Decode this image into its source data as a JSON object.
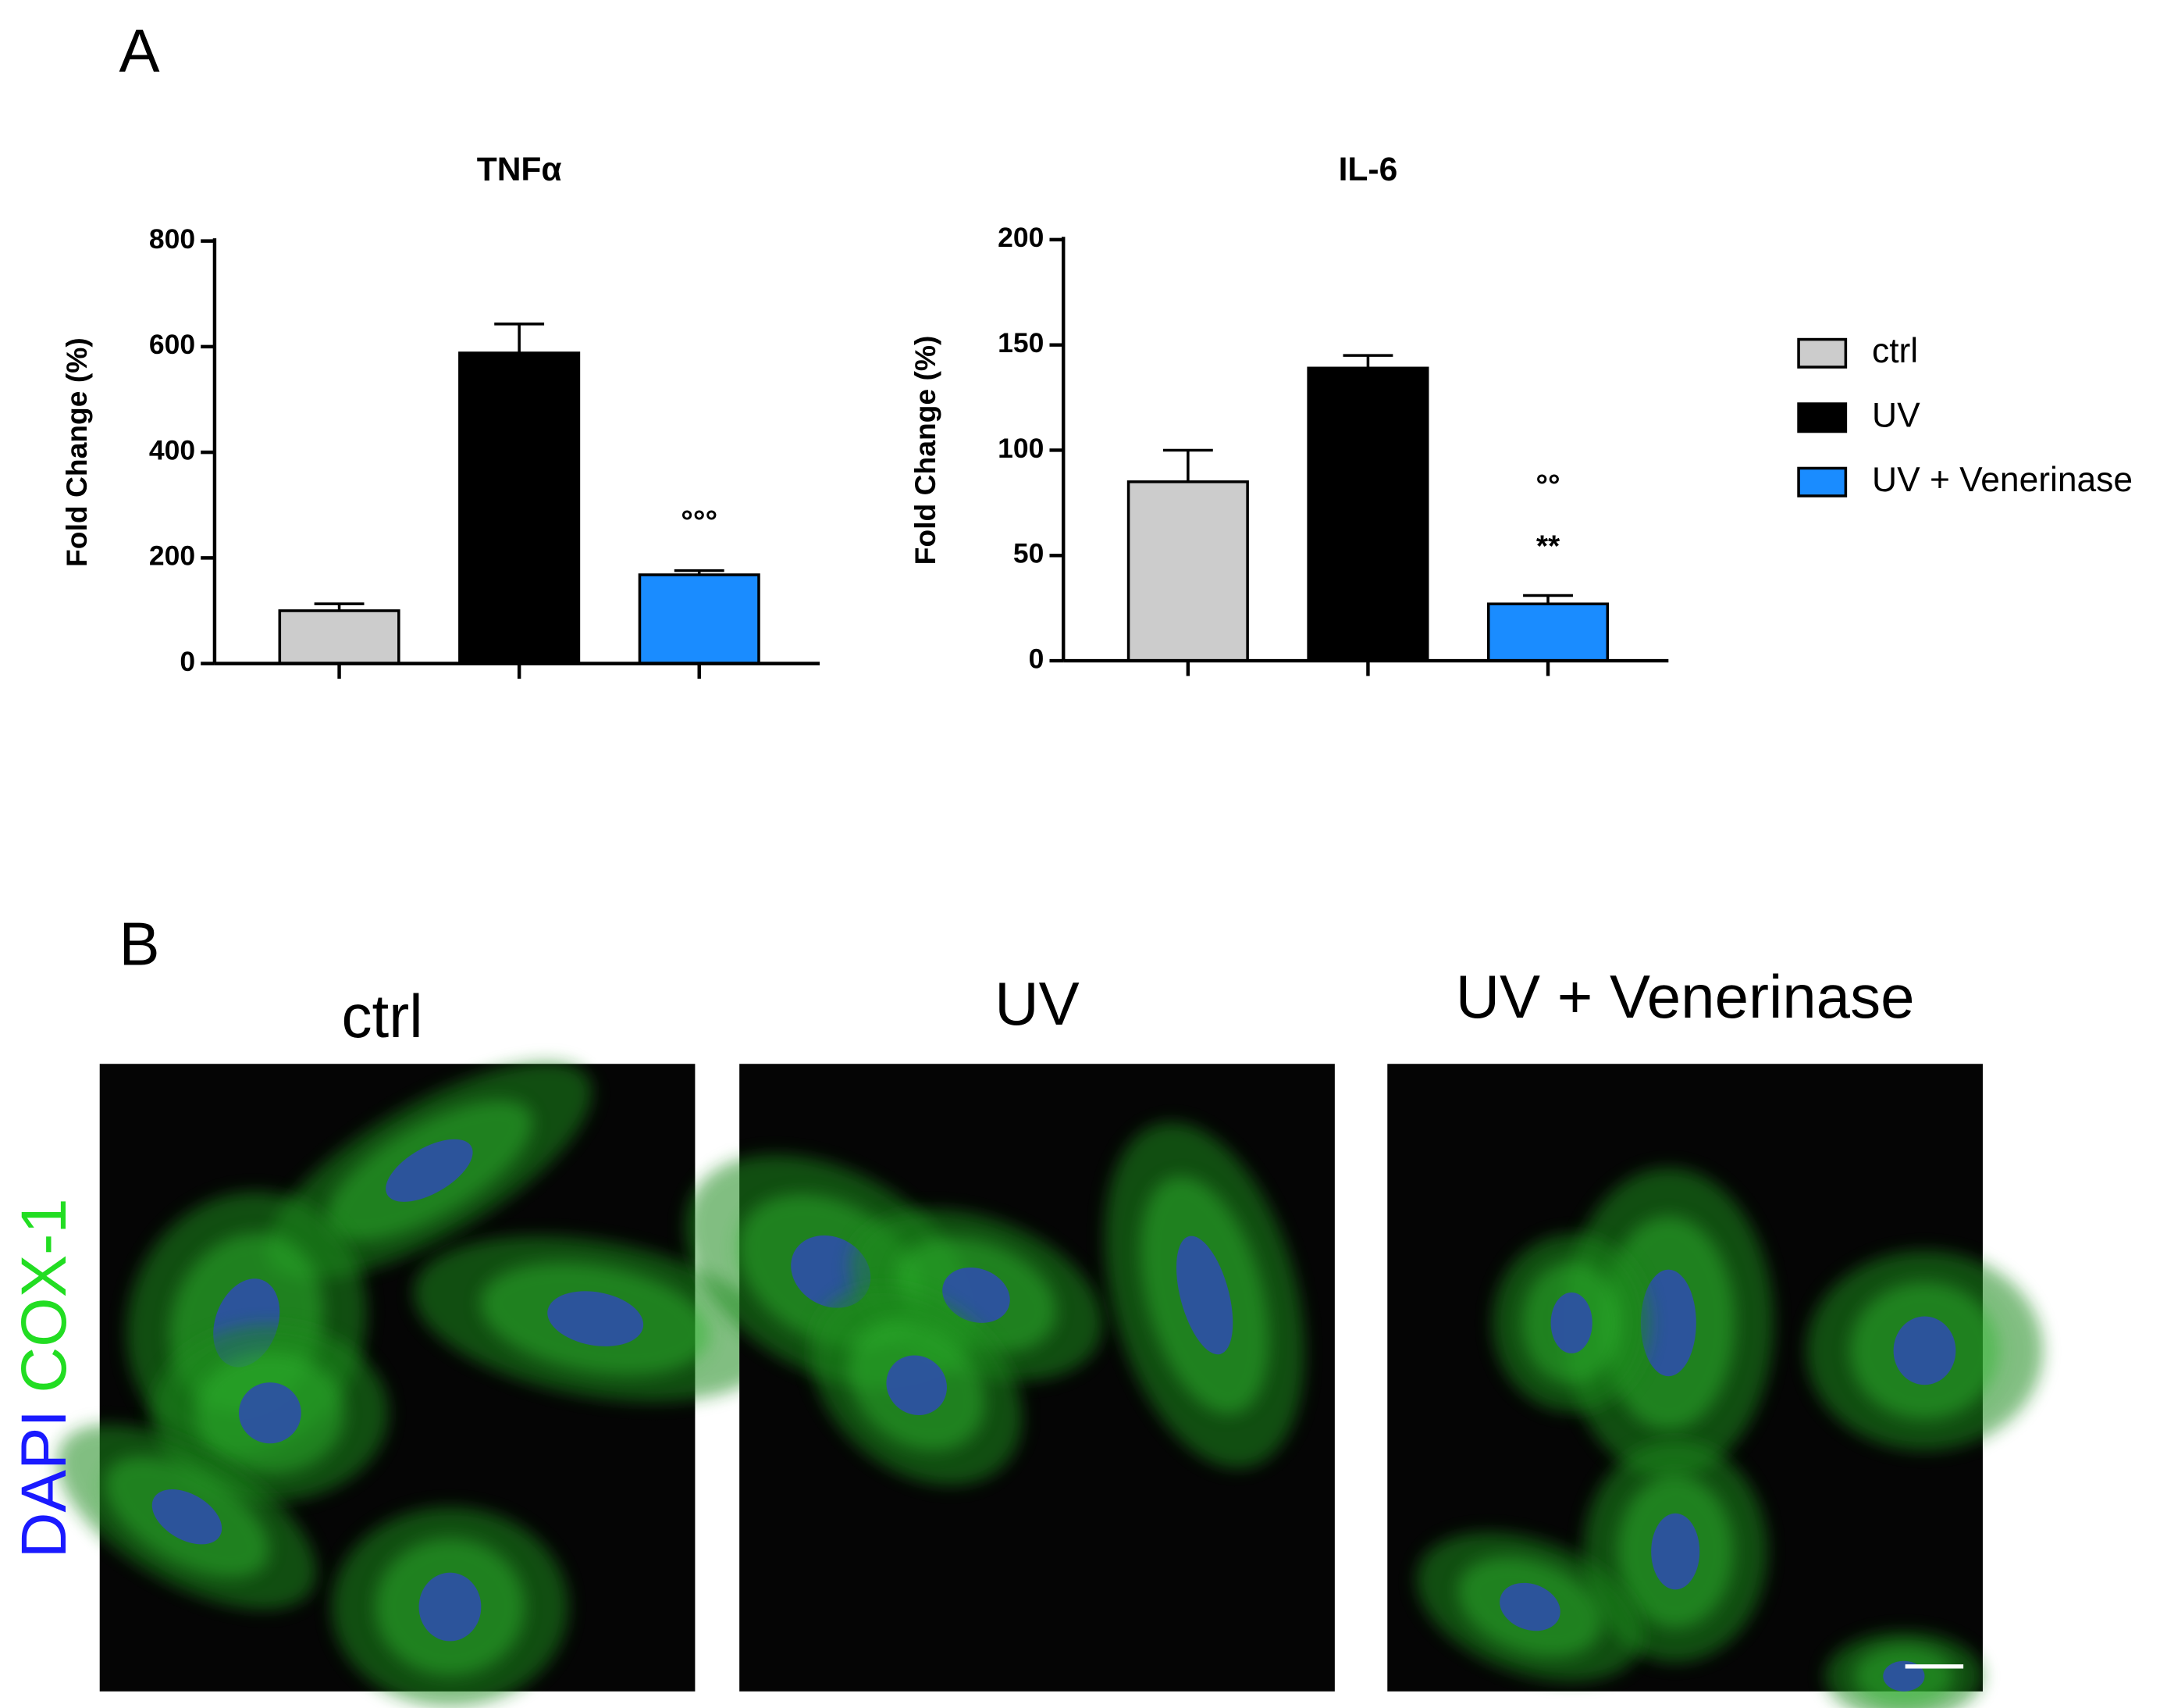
{
  "panel_a": {
    "label": "A"
  },
  "chart_data": [
    {
      "type": "bar",
      "title": "TNFα",
      "y_label": "Fold Change (%)",
      "values": [
        100,
        588,
        168
      ],
      "errors": [
        13,
        55,
        8
      ],
      "colors": [
        "#cccccc",
        "#000000",
        "#1a8cff"
      ],
      "annotations": [
        null,
        null,
        [
          "°°°"
        ]
      ],
      "ylim": [
        0,
        800
      ],
      "yticks": [
        0,
        200,
        400,
        600,
        800
      ]
    },
    {
      "type": "bar",
      "title": "IL-6",
      "y_label": "Fold Change (%)",
      "values": [
        85,
        139,
        27
      ],
      "errors": [
        15,
        6,
        4
      ],
      "colors": [
        "#cccccc",
        "#000000",
        "#1a8cff"
      ],
      "annotations": [
        null,
        null,
        [
          "°°",
          "**"
        ]
      ],
      "ylim": [
        0,
        200
      ],
      "yticks": [
        0,
        50,
        100,
        150,
        200
      ]
    }
  ],
  "legend": {
    "entries": [
      "ctrl",
      "UV",
      "UV + Venerinase"
    ]
  },
  "panel_b": {
    "label": "B",
    "titles": [
      "ctrl",
      "UV",
      "UV + Venerinase"
    ],
    "stain": [
      "DAPI",
      "COX-1"
    ],
    "stain_colors": [
      "#1a1aff",
      "#22dd22"
    ]
  }
}
